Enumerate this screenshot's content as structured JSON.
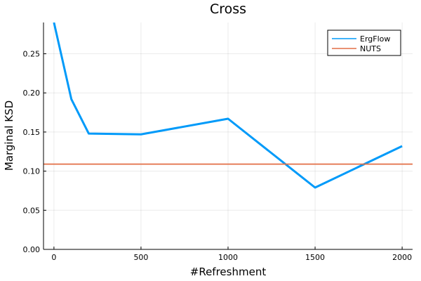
{
  "chart_data": {
    "type": "line",
    "title": "Cross",
    "xlabel": "#Refreshment",
    "ylabel": "Marginal KSD",
    "xlim": [
      -60,
      2060
    ],
    "ylim": [
      0,
      0.29
    ],
    "xticks": [
      0,
      500,
      1000,
      1500,
      2000
    ],
    "xtick_labels": [
      "0",
      "500",
      "1000",
      "1500",
      "2000"
    ],
    "yticks": [
      0.0,
      0.05,
      0.1,
      0.15,
      0.2,
      0.25
    ],
    "ytick_labels": [
      "0.00",
      "0.05",
      "0.10",
      "0.15",
      "0.20",
      "0.25"
    ],
    "grid": true,
    "legend_position": "top-right",
    "series": [
      {
        "name": "ErgFlow",
        "color": "#009AF9",
        "x": [
          0,
          100,
          200,
          500,
          1000,
          1500,
          2000
        ],
        "y": [
          0.29,
          0.192,
          0.148,
          0.147,
          0.167,
          0.079,
          0.132
        ]
      },
      {
        "name": "NUTS",
        "color": "#E26F46",
        "type": "hline",
        "y": 0.109
      }
    ]
  }
}
